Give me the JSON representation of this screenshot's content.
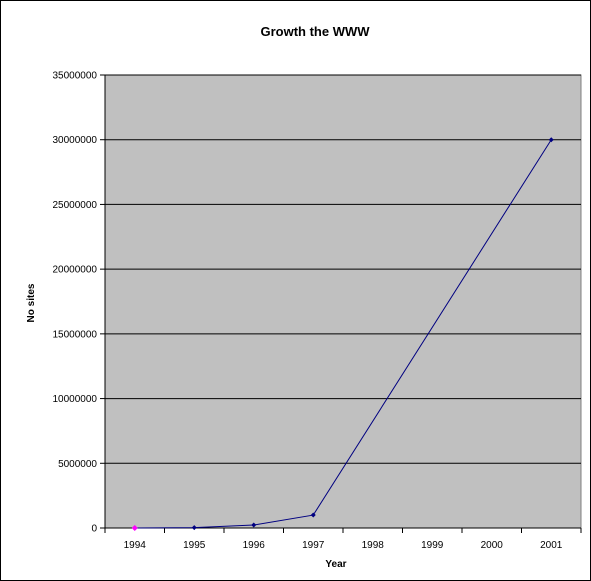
{
  "chart_data": {
    "type": "line",
    "title": "Growth the WWW",
    "xlabel": "Year",
    "ylabel": "No sites",
    "categories": [
      "1994",
      "1995",
      "1996",
      "1997",
      "1998",
      "1999",
      "2000",
      "2001"
    ],
    "series": [
      {
        "points": [
          {
            "x": "1994",
            "y": 3000
          },
          {
            "x": "1995",
            "y": 25000
          },
          {
            "x": "1996",
            "y": 230000
          },
          {
            "x": "1997",
            "y": 1000000
          },
          {
            "x": "2001",
            "y": 30000000
          }
        ]
      }
    ],
    "highlight_point": {
      "x": "1994",
      "y": 3000
    },
    "ylim": [
      0,
      35000000
    ],
    "yticks": [
      "0",
      "5000000",
      "10000000",
      "15000000",
      "20000000",
      "25000000",
      "30000000",
      "35000000"
    ],
    "grid": true,
    "colors": {
      "plot_background": "#c0c0c0",
      "line": "#000080",
      "marker": "#000080",
      "highlight_marker": "#ff00ff",
      "gridline": "#000000"
    }
  }
}
